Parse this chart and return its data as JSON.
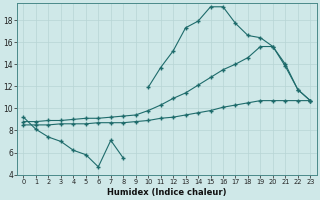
{
  "xlabel": "Humidex (Indice chaleur)",
  "bg_color": "#cfe8e8",
  "grid_color": "#b8d5d5",
  "line_color": "#1e6b6b",
  "xlim": [
    -0.5,
    23.5
  ],
  "ylim": [
    4,
    19.5
  ],
  "yticks": [
    4,
    6,
    8,
    10,
    12,
    14,
    16,
    18
  ],
  "xticks": [
    0,
    1,
    2,
    3,
    4,
    5,
    6,
    7,
    8,
    9,
    10,
    11,
    12,
    13,
    14,
    15,
    16,
    17,
    18,
    19,
    20,
    21,
    22,
    23
  ],
  "line1_x": [
    0,
    1,
    2,
    3,
    4,
    5,
    6,
    7,
    8,
    10,
    11,
    12,
    13,
    14,
    15,
    16,
    17,
    18,
    19,
    20,
    21,
    22,
    23
  ],
  "line1_y": [
    9.2,
    8.1,
    7.4,
    7.0,
    6.2,
    5.8,
    4.7,
    7.1,
    5.5,
    11.9,
    13.7,
    15.2,
    17.3,
    17.9,
    19.2,
    19.2,
    17.7,
    16.6,
    16.4,
    15.6,
    13.8,
    11.7,
    10.7
  ],
  "line2_x": [
    0,
    1,
    2,
    3,
    4,
    5,
    6,
    7,
    8,
    9,
    10,
    11,
    12,
    13,
    14,
    15,
    16,
    17,
    18,
    19,
    20,
    21,
    22,
    23
  ],
  "line2_y": [
    8.8,
    8.8,
    8.9,
    8.9,
    9.0,
    9.1,
    9.1,
    9.2,
    9.3,
    9.4,
    9.8,
    10.3,
    10.9,
    11.4,
    12.1,
    12.8,
    13.5,
    14.0,
    14.6,
    15.6,
    15.6,
    14.0,
    11.7,
    10.7
  ],
  "line3_x": [
    0,
    1,
    2,
    3,
    4,
    5,
    6,
    7,
    8,
    9,
    10,
    11,
    12,
    13,
    14,
    15,
    16,
    17,
    18,
    19,
    20,
    21,
    22,
    23
  ],
  "line3_y": [
    8.5,
    8.5,
    8.5,
    8.6,
    8.6,
    8.6,
    8.7,
    8.7,
    8.7,
    8.8,
    8.9,
    9.1,
    9.2,
    9.4,
    9.6,
    9.8,
    10.1,
    10.3,
    10.5,
    10.7,
    10.7,
    10.7,
    10.7,
    10.7
  ]
}
